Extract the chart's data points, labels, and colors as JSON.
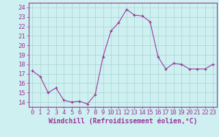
{
  "x": [
    0,
    1,
    2,
    3,
    4,
    5,
    6,
    7,
    8,
    9,
    10,
    11,
    12,
    13,
    14,
    15,
    16,
    17,
    18,
    19,
    20,
    21,
    22,
    23
  ],
  "y": [
    17.3,
    16.7,
    15.0,
    15.5,
    14.2,
    14.0,
    14.1,
    13.8,
    14.8,
    18.8,
    21.5,
    22.4,
    23.8,
    23.2,
    23.1,
    22.5,
    18.8,
    17.5,
    18.1,
    18.0,
    17.5,
    17.5,
    17.5,
    18.0
  ],
  "line_color": "#993399",
  "marker": "+",
  "marker_size": 3,
  "bg_color": "#cff0f0",
  "grid_color": "#aad8d8",
  "xlabel": "Windchill (Refroidissement éolien,°C)",
  "xlabel_fontsize": 7,
  "tick_fontsize": 6.5,
  "ylim": [
    13.5,
    24.5
  ],
  "yticks": [
    14,
    15,
    16,
    17,
    18,
    19,
    20,
    21,
    22,
    23,
    24
  ],
  "xticks": [
    0,
    1,
    2,
    3,
    4,
    5,
    6,
    7,
    8,
    9,
    10,
    11,
    12,
    13,
    14,
    15,
    16,
    17,
    18,
    19,
    20,
    21,
    22,
    23
  ],
  "xlim": [
    -0.5,
    23.5
  ]
}
